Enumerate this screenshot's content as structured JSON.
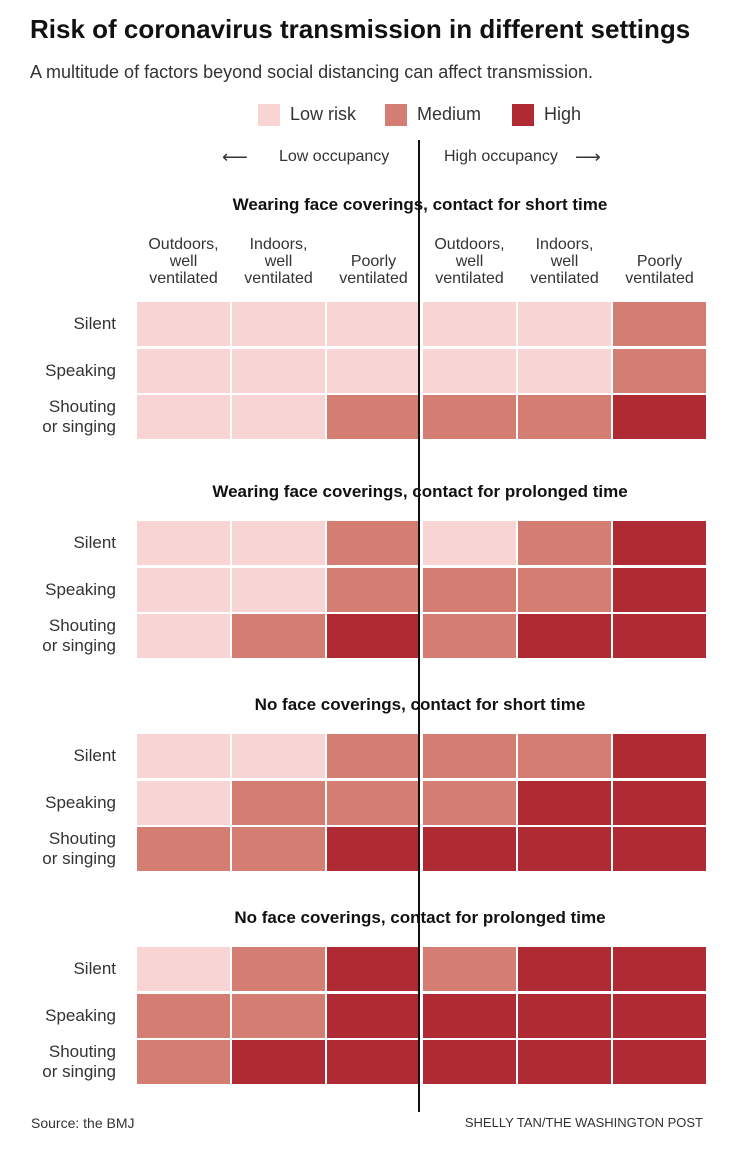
{
  "title": "Risk of coronavirus transmission in different settings",
  "subtitle": "A multitude of factors beyond social distancing can affect transmission.",
  "legend": [
    {
      "label": "Low risk",
      "color": "#f8d4d4"
    },
    {
      "label": "Medium",
      "color": "#d47d72"
    },
    {
      "label": "High",
      "color": "#b02a33"
    }
  ],
  "occupancy": {
    "low": "Low occupancy",
    "high": "High occupancy"
  },
  "footer": {
    "source": "Source: the BMJ",
    "credit": "SHELLY TAN/THE WASHINGTON POST"
  },
  "chart_data": {
    "type": "heatmap",
    "risk_levels": [
      "Low risk",
      "Medium",
      "High"
    ],
    "columns": [
      {
        "group": "Low occupancy",
        "lines": [
          "Outdoors,",
          "well",
          "ventilated"
        ]
      },
      {
        "group": "Low occupancy",
        "lines": [
          "Indoors,",
          "well",
          "ventilated"
        ]
      },
      {
        "group": "Low occupancy",
        "lines": [
          "Poorly",
          "ventilated"
        ]
      },
      {
        "group": "High occupancy",
        "lines": [
          "Outdoors,",
          "well",
          "ventilated"
        ]
      },
      {
        "group": "High occupancy",
        "lines": [
          "Indoors,",
          "well",
          "ventilated"
        ]
      },
      {
        "group": "High occupancy",
        "lines": [
          "Poorly",
          "ventilated"
        ]
      }
    ],
    "rows": [
      {
        "lines": [
          "Silent"
        ]
      },
      {
        "lines": [
          "Speaking"
        ]
      },
      {
        "lines": [
          "Shouting",
          "or singing"
        ]
      }
    ],
    "panels": [
      {
        "title": "Wearing face coverings, contact for short time",
        "values": [
          [
            "Low risk",
            "Low risk",
            "Low risk",
            "Low risk",
            "Low risk",
            "Medium"
          ],
          [
            "Low risk",
            "Low risk",
            "Low risk",
            "Low risk",
            "Low risk",
            "Medium"
          ],
          [
            "Low risk",
            "Low risk",
            "Medium",
            "Medium",
            "Medium",
            "High"
          ]
        ]
      },
      {
        "title": "Wearing face coverings, contact for prolonged time",
        "values": [
          [
            "Low risk",
            "Low risk",
            "Medium",
            "Low risk",
            "Medium",
            "High"
          ],
          [
            "Low risk",
            "Low risk",
            "Medium",
            "Medium",
            "Medium",
            "High"
          ],
          [
            "Low risk",
            "Medium",
            "High",
            "Medium",
            "High",
            "High"
          ]
        ]
      },
      {
        "title": "No face coverings, contact for short time",
        "values": [
          [
            "Low risk",
            "Low risk",
            "Medium",
            "Medium",
            "Medium",
            "High"
          ],
          [
            "Low risk",
            "Medium",
            "Medium",
            "Medium",
            "High",
            "High"
          ],
          [
            "Medium",
            "Medium",
            "High",
            "High",
            "High",
            "High"
          ]
        ]
      },
      {
        "title": "No face coverings, contact for prolonged time",
        "values": [
          [
            "Low risk",
            "Medium",
            "High",
            "Medium",
            "High",
            "High"
          ],
          [
            "Medium",
            "Medium",
            "High",
            "High",
            "High",
            "High"
          ],
          [
            "Medium",
            "High",
            "High",
            "High",
            "High",
            "High"
          ]
        ]
      }
    ]
  }
}
